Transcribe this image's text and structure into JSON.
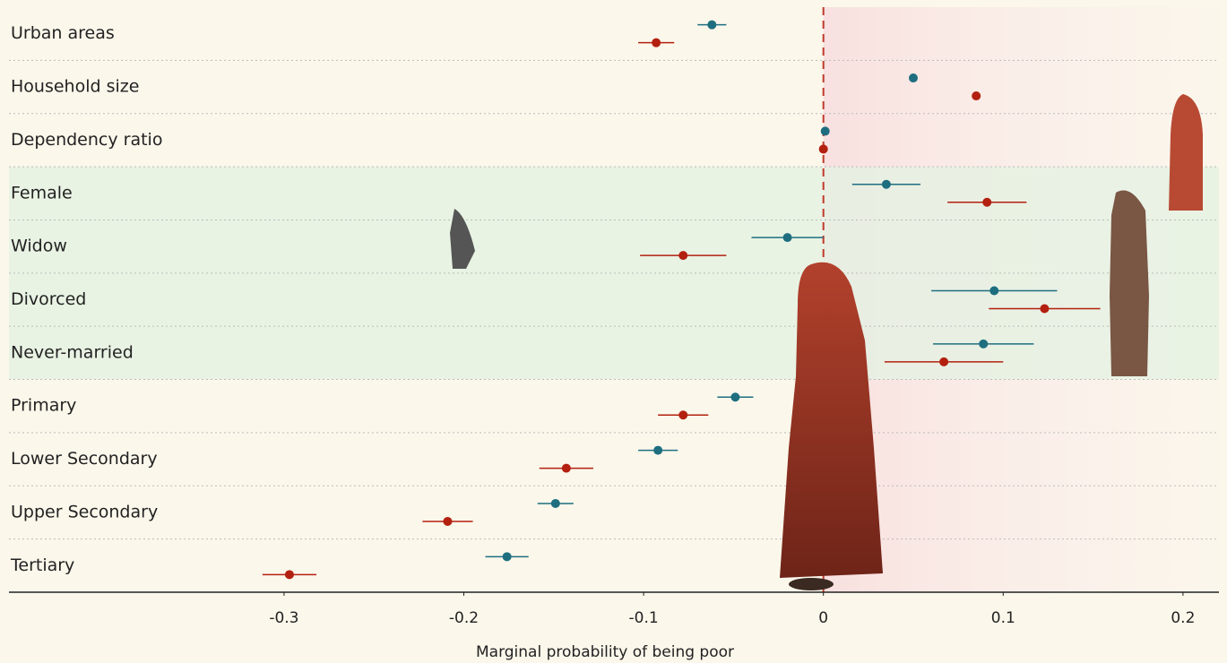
{
  "chart_data": {
    "type": "forest",
    "x_label": "Marginal probability of being poor",
    "categories": [
      "Urban areas",
      "Household size",
      "Dependency ratio",
      "Female",
      "Widow",
      "Divorced",
      "Never-married",
      "Primary",
      "Lower Secondary",
      "Upper Secondary",
      "Tertiary"
    ],
    "series": [
      {
        "color": "#1e6e80",
        "values": [
          -0.062,
          0.05,
          0.001,
          0.035,
          -0.02,
          0.095,
          0.089,
          -0.049,
          -0.092,
          -0.149,
          -0.176
        ],
        "errors": [
          0.008,
          null,
          null,
          0.019,
          0.02,
          0.035,
          0.028,
          0.01,
          0.011,
          0.01,
          0.012
        ]
      },
      {
        "color": "#b3200f",
        "values": [
          -0.093,
          0.085,
          0,
          0.091,
          -0.078,
          0.123,
          0.067,
          -0.078,
          -0.143,
          -0.209,
          -0.297
        ],
        "errors": [
          0.01,
          null,
          null,
          0.022,
          0.024,
          0.031,
          0.033,
          0.014,
          0.015,
          0.014,
          0.015
        ]
      }
    ],
    "xlim": [
      -0.453,
      0.22
    ],
    "xticks": [
      -0.3,
      -0.2,
      -0.1,
      0,
      0.1,
      0.2
    ],
    "zero_line_color": "#c0392b"
  }
}
